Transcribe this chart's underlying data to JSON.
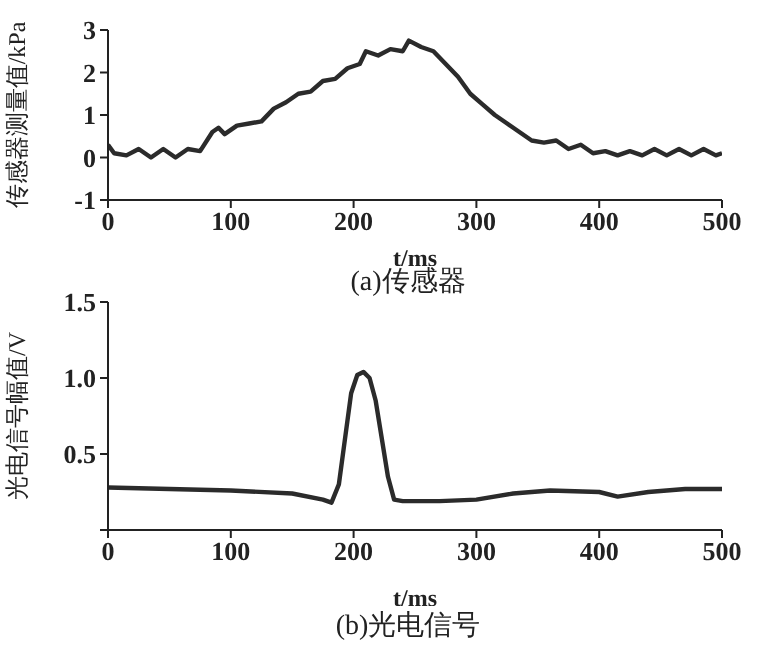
{
  "chart_data": [
    {
      "type": "line",
      "title": "(a)传感器",
      "xlabel": "t/ms",
      "ylabel": "传感器测量值/kPa",
      "xlim": [
        0,
        500
      ],
      "xticks": [
        0,
        100,
        200,
        300,
        400,
        500
      ],
      "ylim": [
        -1,
        3
      ],
      "yticks": [
        -1,
        0,
        1,
        2,
        3
      ],
      "marker": "none",
      "line_style": "solid",
      "series": [
        {
          "color": "#2b2b2b",
          "x": [
            0,
            5,
            15,
            25,
            35,
            45,
            55,
            65,
            75,
            85,
            90,
            95,
            105,
            115,
            125,
            135,
            145,
            155,
            165,
            175,
            185,
            195,
            205,
            210,
            220,
            230,
            240,
            245,
            255,
            265,
            275,
            285,
            295,
            305,
            315,
            325,
            335,
            345,
            355,
            365,
            375,
            385,
            395,
            405,
            415,
            425,
            435,
            445,
            455,
            465,
            475,
            485,
            495,
            500
          ],
          "values": [
            0.3,
            0.1,
            0.05,
            0.2,
            0.0,
            0.2,
            0.0,
            0.2,
            0.15,
            0.6,
            0.7,
            0.55,
            0.75,
            0.8,
            0.85,
            1.15,
            1.3,
            1.5,
            1.55,
            1.8,
            1.85,
            2.1,
            2.2,
            2.5,
            2.4,
            2.55,
            2.5,
            2.75,
            2.6,
            2.5,
            2.2,
            1.9,
            1.5,
            1.25,
            1.0,
            0.8,
            0.6,
            0.4,
            0.35,
            0.4,
            0.2,
            0.3,
            0.1,
            0.15,
            0.05,
            0.15,
            0.05,
            0.2,
            0.05,
            0.2,
            0.05,
            0.2,
            0.05,
            0.1
          ]
        }
      ]
    },
    {
      "type": "line",
      "title": "(b)光电信号",
      "xlabel": "t/ms",
      "ylabel": "光电信号幅值/V",
      "xlim": [
        0,
        500
      ],
      "xticks": [
        0,
        100,
        200,
        300,
        400,
        500
      ],
      "ylim": [
        0,
        1.5
      ],
      "yticks": [
        {
          "value": 0,
          "label": null
        },
        0.5,
        {
          "value": 1,
          "label": "1.0"
        },
        1.5
      ],
      "marker": "none",
      "line_style": "solid",
      "series": [
        {
          "color": "#2b2b2b",
          "x": [
            0,
            50,
            100,
            150,
            175,
            182,
            188,
            193,
            198,
            203,
            208,
            213,
            218,
            223,
            228,
            233,
            240,
            270,
            300,
            330,
            360,
            400,
            415,
            440,
            470,
            500
          ],
          "values": [
            0.28,
            0.27,
            0.26,
            0.24,
            0.2,
            0.18,
            0.3,
            0.6,
            0.9,
            1.02,
            1.04,
            1.0,
            0.85,
            0.6,
            0.35,
            0.2,
            0.19,
            0.19,
            0.2,
            0.24,
            0.26,
            0.25,
            0.22,
            0.25,
            0.27,
            0.27
          ]
        }
      ]
    }
  ]
}
